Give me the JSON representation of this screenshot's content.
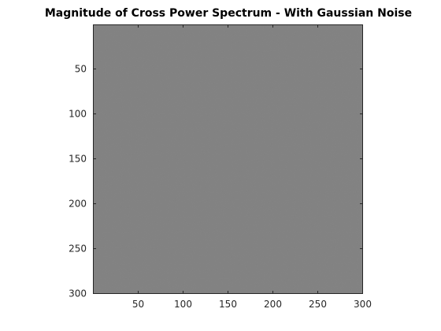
{
  "chart_data": {
    "type": "heatmap",
    "title": "Magnitude of Cross Power Spectrum - With Gaussian Noise",
    "xlabel": "",
    "ylabel": "",
    "xlim": [
      0.5,
      300.5
    ],
    "ylim": [
      0.5,
      300.5
    ],
    "y_reversed": true,
    "xticks": [
      50,
      100,
      150,
      200,
      250,
      300
    ],
    "yticks": [
      50,
      100,
      150,
      200,
      250,
      300
    ],
    "grid": false,
    "colormap": "gray",
    "matrix_size": [
      300,
      300
    ],
    "typical_value": "uniform mid-gray (~0.5 of colormap)",
    "colors": {
      "image_fill": "#808080",
      "axis": "#262626",
      "background": "#ffffff"
    }
  }
}
